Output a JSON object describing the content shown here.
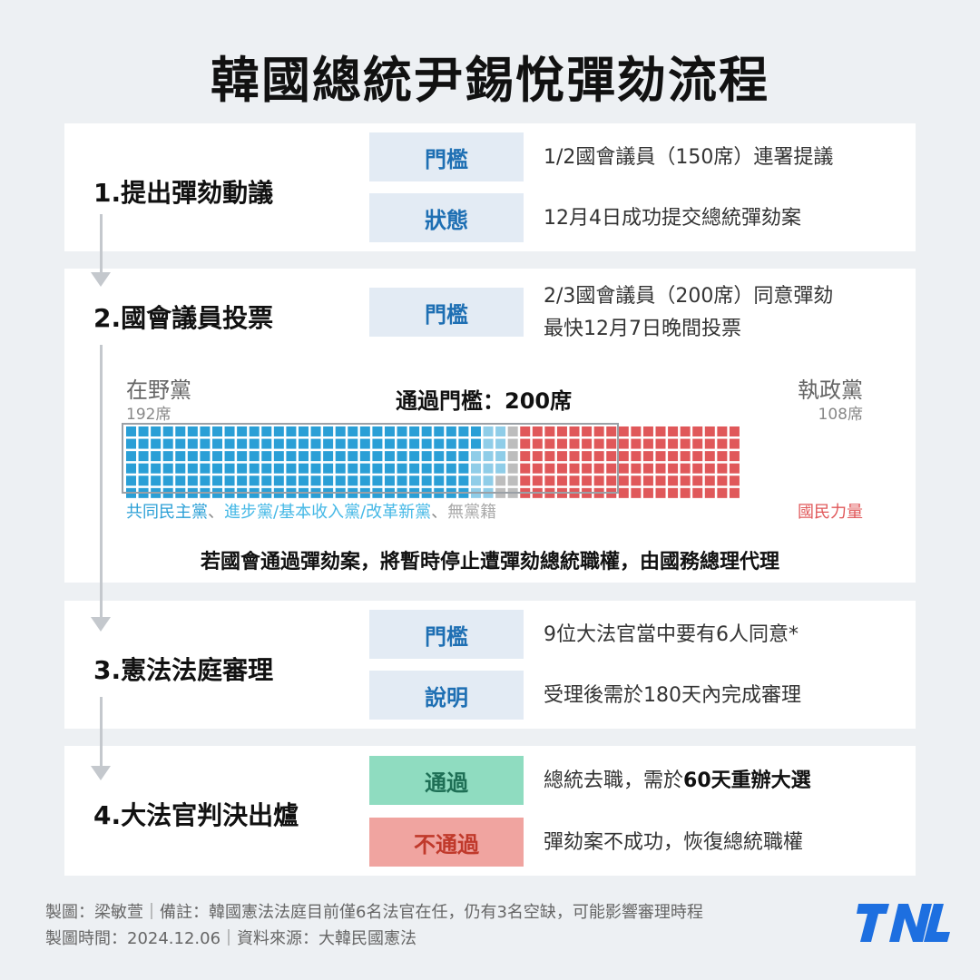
{
  "title": "韓國總統尹錫悅彈劾流程",
  "steps": [
    {
      "title": "1.提出彈劾動議",
      "rows": [
        {
          "label": "門檻",
          "text": "1/2國會議員（150席）連署提議"
        },
        {
          "label": "狀態",
          "text": "12月4日成功提交總統彈劾案"
        }
      ]
    },
    {
      "title": "2.國會議員投票",
      "rows": [
        {
          "label": "門檻",
          "text": "2/3國會議員（200席）同意彈劾",
          "text2": "最快12月7日晚間投票"
        }
      ],
      "opposition": {
        "name": "在野黨",
        "seats": "192席"
      },
      "ruling": {
        "name": "執政黨",
        "seats": "108席"
      },
      "threshold_label": "通過門檻：200席",
      "legend_left": [
        {
          "text": "共同民主黨",
          "color": "#2a9fd6"
        },
        {
          "text": "、",
          "color": "#888888"
        },
        {
          "text": "進步黨/基本收入黨/改革新黨",
          "color": "#45b8e6"
        },
        {
          "text": "、",
          "color": "#888888"
        },
        {
          "text": "無黨籍",
          "color": "#a9a9a9"
        }
      ],
      "legend_right": {
        "text": "國民力量",
        "color": "#e0585a"
      },
      "note": "若國會通過彈劾案，將暫時停止遭彈劾總統職權，由國務總理代理"
    },
    {
      "title": "3.憲法法庭審理",
      "rows": [
        {
          "label": "門檻",
          "text": "9位大法官當中要有6人同意*"
        },
        {
          "label": "說明",
          "text": "受理後需於180天內完成審理"
        }
      ]
    },
    {
      "title": "4.大法官判決出爐",
      "rows": [
        {
          "label": "通過",
          "text_a": "總統去職，需於",
          "text_bold": "60天重辦大選"
        },
        {
          "label": "不通過",
          "text": "彈劾案不成功，恢復總統職權"
        }
      ]
    }
  ],
  "chart_data": {
    "type": "waffle",
    "total_seats": 300,
    "threshold": 200,
    "series": [
      {
        "name": "共同民主黨",
        "values": [
          170
        ],
        "color": "#2a9fd6"
      },
      {
        "name": "進步黨/基本收入黨/改革新黨",
        "values": [
          14
        ],
        "color": "#8fcde8"
      },
      {
        "name": "無黨籍",
        "values": [
          8
        ],
        "color": "#bdbdbd"
      },
      {
        "name": "國民力量",
        "values": [
          108
        ],
        "color": "#e0585a"
      }
    ]
  },
  "footer": {
    "line1": "製圖：梁敏萱｜備註：韓國憲法法庭目前僅6名法官在任，仍有3名空缺，可能影響審理時程",
    "line2": "製圖時間：2024.12.06｜資料來源：大韓民國憲法"
  },
  "logo_text": "TNL"
}
